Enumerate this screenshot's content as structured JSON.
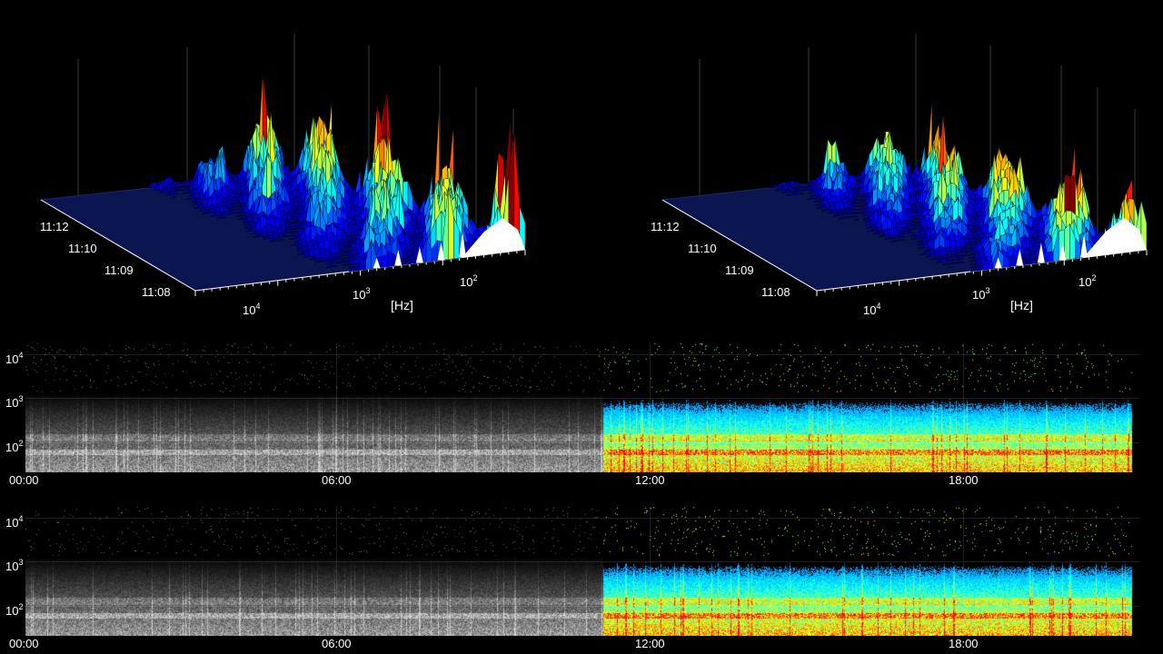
{
  "waterfalls": [
    {
      "id": "left",
      "time_labels": [
        "11:12",
        "11:10",
        "11:09",
        "11:08"
      ],
      "freq_labels": [
        {
          "base": "10",
          "exp": "4"
        },
        {
          "base": "10",
          "exp": "3"
        },
        {
          "base": "10",
          "exp": "2"
        }
      ],
      "unit_label": "[Hz]"
    },
    {
      "id": "right",
      "time_labels": [
        "11:12",
        "11:10",
        "11:09",
        "11:08"
      ],
      "freq_labels": [
        {
          "base": "10",
          "exp": "4"
        },
        {
          "base": "10",
          "exp": "3"
        },
        {
          "base": "10",
          "exp": "2"
        }
      ],
      "unit_label": "[Hz]"
    }
  ],
  "spectrograms": [
    {
      "id": "top",
      "y_ticks": [
        {
          "base": "10",
          "exp": "4"
        },
        {
          "base": "10",
          "exp": "3"
        },
        {
          "base": "10",
          "exp": "2"
        }
      ],
      "x_ticks": [
        "00:00",
        "06:00",
        "12:00",
        "18:00"
      ]
    },
    {
      "id": "bottom",
      "y_ticks": [
        {
          "base": "10",
          "exp": "4"
        },
        {
          "base": "10",
          "exp": "3"
        },
        {
          "base": "10",
          "exp": "2"
        }
      ],
      "x_ticks": [
        "00:00",
        "06:00",
        "12:00",
        "18:00"
      ]
    }
  ],
  "colors": {
    "background": "#000000",
    "floor": "#0a1450",
    "peak_high": "#c01000",
    "peak_low": "#0030d0"
  }
}
